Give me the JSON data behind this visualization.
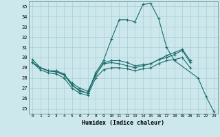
{
  "xlabel": "Humidex (Indice chaleur)",
  "bg_color": "#cce8ec",
  "grid_color": "#aaccd4",
  "line_color": "#1a6b6b",
  "xlim": [
    -0.5,
    23.5
  ],
  "ylim": [
    24.5,
    35.5
  ],
  "yticks": [
    25,
    26,
    27,
    28,
    29,
    30,
    31,
    32,
    33,
    34,
    35
  ],
  "xticks": [
    0,
    1,
    2,
    3,
    4,
    5,
    6,
    7,
    8,
    9,
    10,
    11,
    12,
    13,
    14,
    15,
    16,
    17,
    18,
    19,
    20,
    21,
    22,
    23
  ],
  "line1_x": [
    0,
    1,
    2,
    3,
    4,
    5,
    6,
    7,
    8,
    9,
    10,
    11,
    12,
    13,
    14,
    15,
    16,
    17,
    18,
    21,
    22,
    23
  ],
  "line1_y": [
    29.8,
    29.0,
    28.7,
    28.7,
    28.4,
    27.3,
    26.7,
    26.5,
    28.5,
    29.7,
    31.8,
    33.7,
    33.7,
    33.5,
    35.2,
    35.3,
    33.8,
    31.0,
    29.7,
    28.0,
    26.2,
    24.7
  ],
  "line2_x": [
    0,
    1,
    2,
    3,
    4,
    5,
    6,
    7,
    8,
    9,
    10,
    11,
    12,
    13,
    14,
    15,
    16,
    17,
    18,
    19,
    20
  ],
  "line2_y": [
    29.5,
    29.0,
    28.7,
    28.6,
    28.3,
    27.5,
    27.0,
    26.7,
    28.3,
    29.5,
    29.7,
    29.7,
    29.5,
    29.2,
    29.3,
    29.4,
    29.8,
    30.2,
    30.5,
    30.8,
    29.7
  ],
  "line3_x": [
    0,
    1,
    2,
    3,
    4,
    5,
    6,
    7,
    8,
    9,
    10,
    11,
    12,
    13,
    14,
    15,
    16,
    17,
    18,
    19,
    20
  ],
  "line3_y": [
    29.5,
    29.0,
    28.7,
    28.6,
    28.3,
    27.3,
    26.8,
    26.5,
    28.3,
    29.4,
    29.5,
    29.4,
    29.2,
    29.0,
    29.2,
    29.4,
    29.8,
    30.0,
    30.3,
    30.7,
    29.5
  ],
  "line4_x": [
    0,
    1,
    2,
    3,
    4,
    5,
    6,
    7,
    8,
    9,
    10,
    11,
    12,
    13,
    14,
    15,
    16,
    17,
    18,
    19,
    20
  ],
  "line4_y": [
    29.5,
    28.8,
    28.5,
    28.4,
    28.0,
    27.0,
    26.5,
    26.3,
    28.0,
    28.8,
    29.0,
    29.0,
    28.9,
    28.7,
    28.9,
    29.0,
    29.4,
    29.7,
    29.8,
    30.0,
    29.0
  ]
}
